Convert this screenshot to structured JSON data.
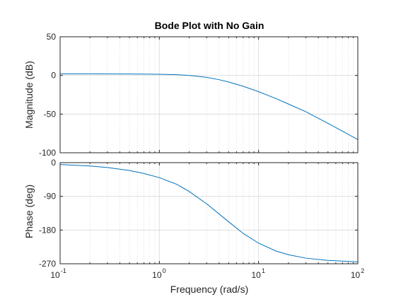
{
  "chart_data": [
    {
      "type": "line",
      "title": "Bode Plot with No Gain",
      "xlabel": "",
      "ylabel": "Magnitude (dB)",
      "xscale": "log",
      "xlim": [
        0.1,
        100
      ],
      "ylim": [
        -100,
        50
      ],
      "yticks": [
        "50",
        "0",
        "-50",
        "-100"
      ],
      "grid": true,
      "series": [
        {
          "x": [
            0.1,
            0.2,
            0.5,
            1,
            1.5,
            2,
            3,
            4,
            5,
            7,
            10,
            15,
            20,
            30,
            50,
            70,
            100
          ],
          "values": [
            2.0,
            2.0,
            1.9,
            1.5,
            0.9,
            0.0,
            -2.5,
            -5.5,
            -8.5,
            -14,
            -21,
            -30,
            -37,
            -47,
            -62,
            -72,
            -83
          ]
        }
      ]
    },
    {
      "type": "line",
      "title": "",
      "xlabel": "Frequency  (rad/s)",
      "ylabel": "Phase (deg)",
      "xscale": "log",
      "xlim": [
        0.1,
        100
      ],
      "ylim": [
        -270,
        0
      ],
      "yticks": [
        "0",
        "-90",
        "-180",
        "-270"
      ],
      "xtick_base": "10",
      "xtick_exponents": [
        "-1",
        "0",
        "1",
        "2"
      ],
      "grid": true,
      "series": [
        {
          "x": [
            0.1,
            0.2,
            0.3,
            0.5,
            0.7,
            1,
            1.5,
            2,
            3,
            4,
            5,
            7,
            10,
            15,
            20,
            30,
            50,
            70,
            100
          ],
          "values": [
            -5,
            -9,
            -13,
            -21,
            -29,
            -40,
            -58,
            -77,
            -110,
            -137,
            -158,
            -189,
            -215,
            -236,
            -246,
            -255,
            -261,
            -263,
            -265
          ]
        }
      ]
    }
  ]
}
